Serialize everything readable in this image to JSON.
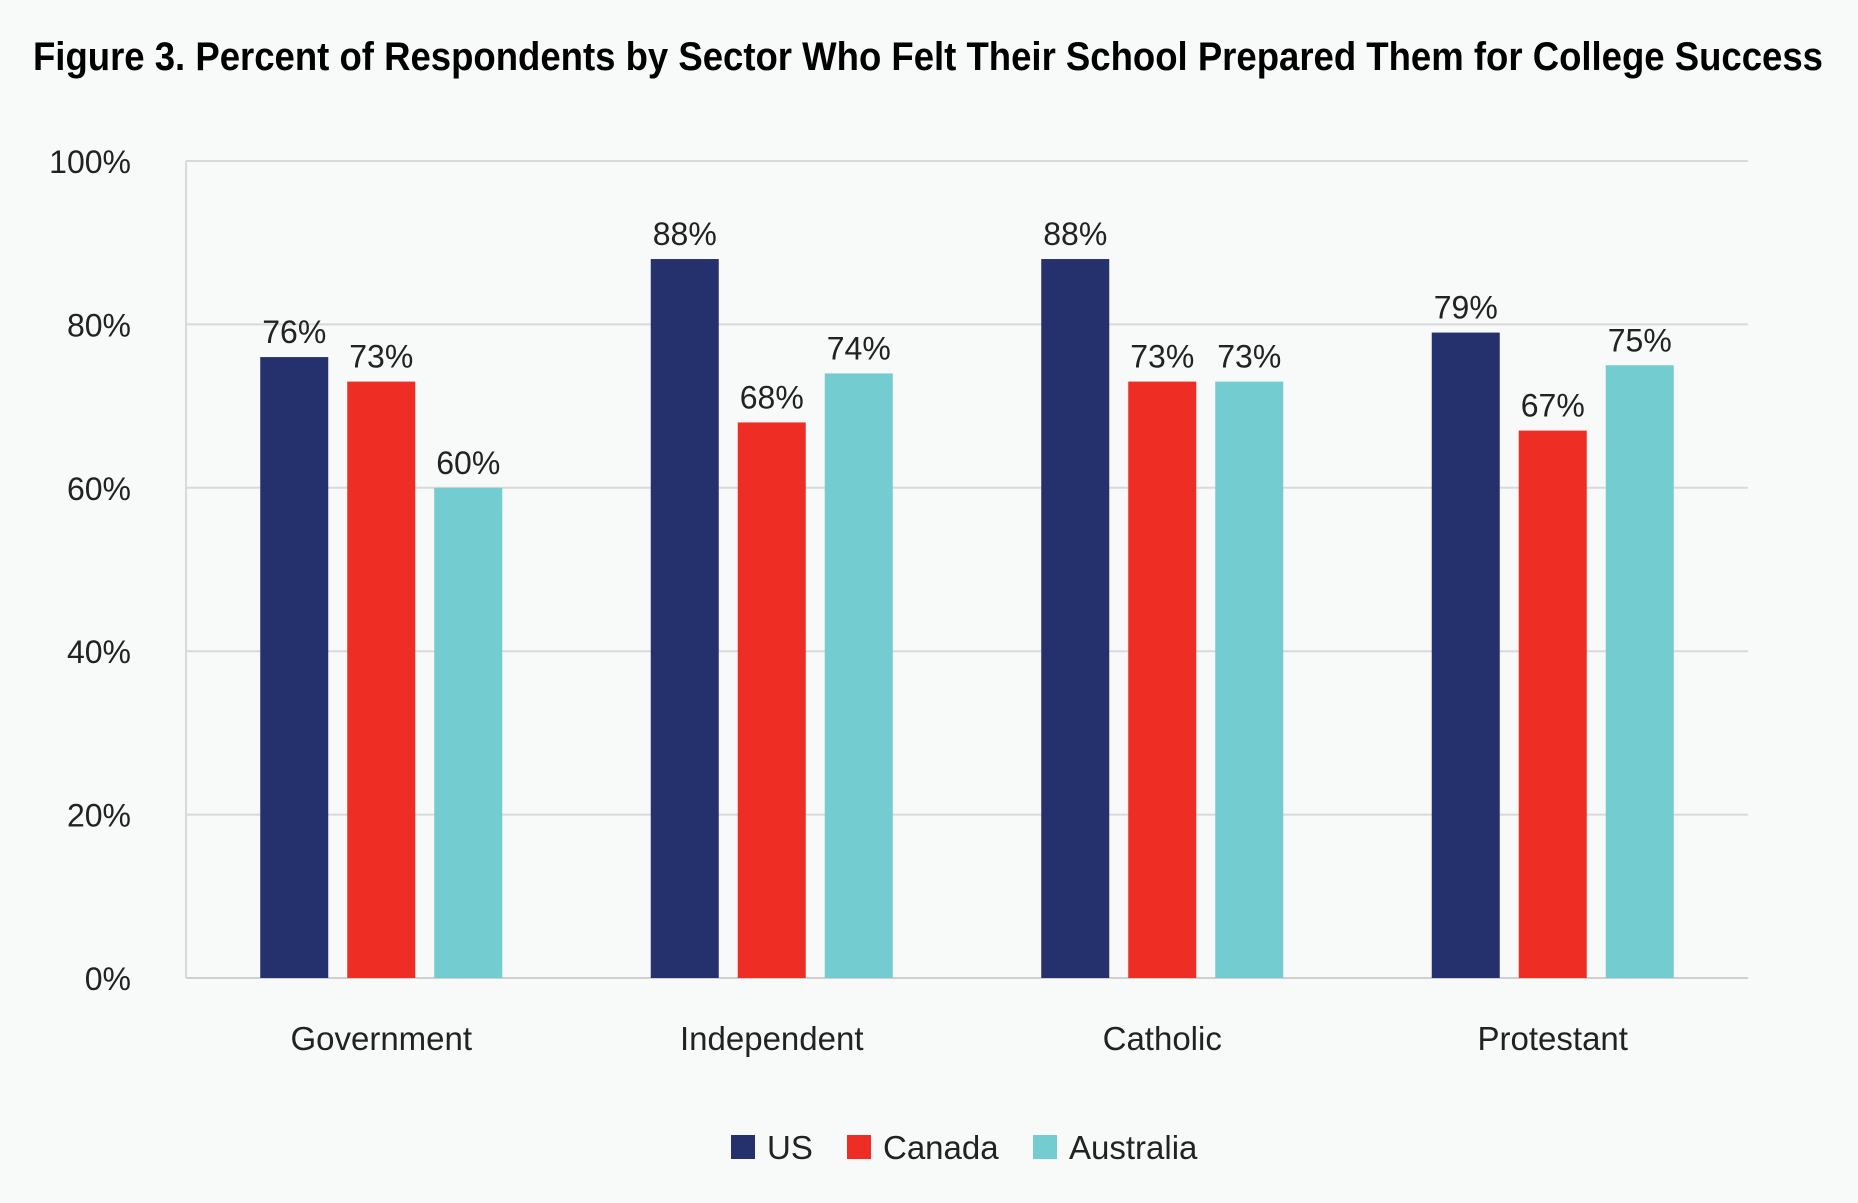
{
  "chart_data": {
    "type": "bar",
    "title": "Figure 3. Percent of Respondents by Sector Who Felt Their School Prepared Them for College Success",
    "xlabel": "",
    "ylabel": "",
    "ylim": [
      0,
      100
    ],
    "yticks": [
      "0%",
      "20%",
      "40%",
      "60%",
      "80%",
      "100%"
    ],
    "grid": true,
    "legend_position": "bottom-center",
    "categories": [
      "Government",
      "Independent",
      "Catholic",
      "Protestant"
    ],
    "series": [
      {
        "name": "US",
        "color": "#25316d",
        "values": [
          76,
          88,
          88,
          79
        ]
      },
      {
        "name": "Canada",
        "color": "#ee2d24",
        "values": [
          73,
          68,
          73,
          67
        ]
      },
      {
        "name": "Australia",
        "color": "#72ccd0",
        "values": [
          60,
          74,
          73,
          75
        ]
      }
    ]
  }
}
